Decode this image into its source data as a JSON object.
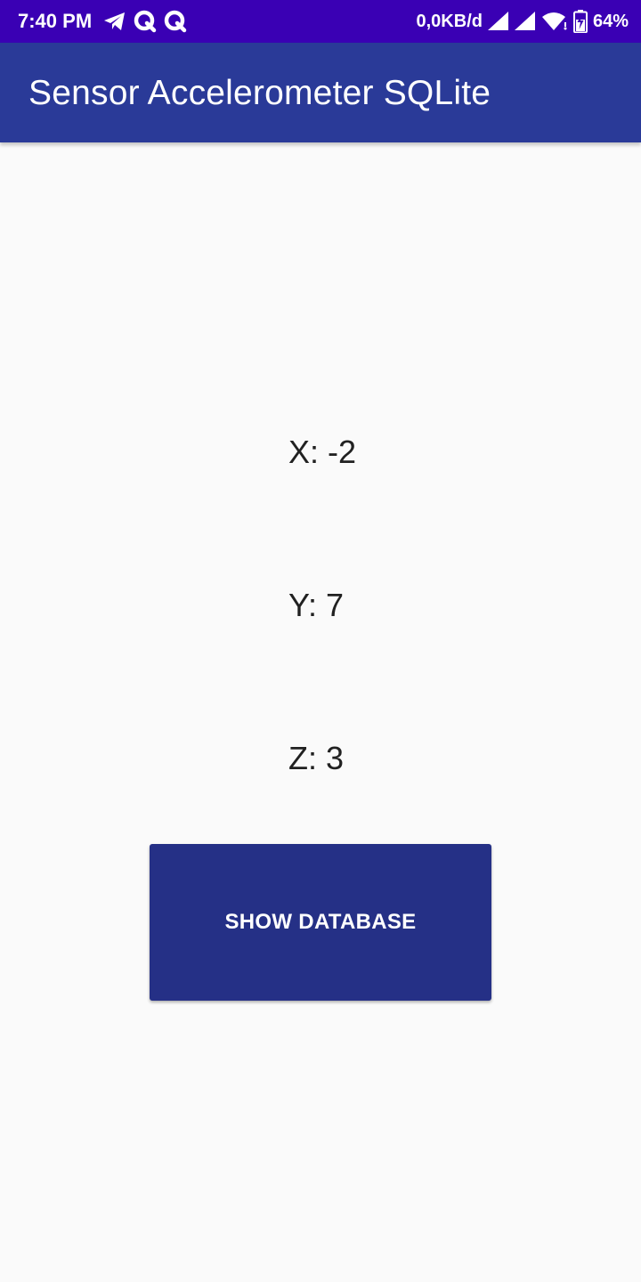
{
  "status_bar": {
    "time": "7:40 PM",
    "left_icons": [
      "telegram-icon",
      "q-app-icon",
      "q-app-icon"
    ],
    "network_speed": "0,0KB/d",
    "right_icons": [
      "signal-icon",
      "signal-icon",
      "wifi-icon",
      "battery-charging-icon"
    ],
    "battery_percent": "64%",
    "background_color": "#3a00b4"
  },
  "app_bar": {
    "title": "Sensor Accelerometer SQLite",
    "background_color": "#2a3a98"
  },
  "main": {
    "x_reading": "X: -2",
    "y_reading": "Y: 7",
    "z_reading": "Z: 3",
    "show_database_label": "SHOW DATABASE",
    "button_color": "#253086"
  }
}
